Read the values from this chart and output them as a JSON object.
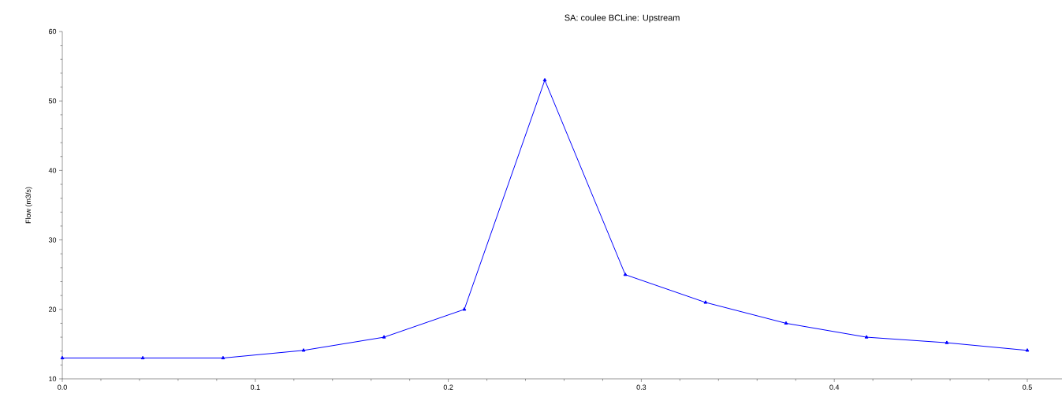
{
  "chart_data": {
    "type": "line",
    "title": "SA: coulee BCLine: Upstream",
    "ylabel": "Flow (m3/s)",
    "x": [
      0,
      0.0417,
      0.0833,
      0.125,
      0.1667,
      0.2083,
      0.25,
      0.2917,
      0.3333,
      0.375,
      0.4167,
      0.4583,
      0.5
    ],
    "series": [
      {
        "color": "#0000ff",
        "values": [
          13,
          13,
          13,
          14.1,
          16,
          20,
          53,
          25,
          21,
          18,
          16,
          15.2,
          14.1
        ]
      }
    ],
    "xlim": [
      0,
      0.518
    ],
    "ylim": [
      10,
      60
    ],
    "xticks": [
      {
        "value": 0,
        "label": "0.0"
      },
      {
        "value": 0.1,
        "label": "0.1"
      },
      {
        "value": 0.2,
        "label": "0.2"
      },
      {
        "value": 0.3,
        "label": "0.3"
      },
      {
        "value": 0.4,
        "label": "0.4"
      },
      {
        "value": 0.5,
        "label": "0.5"
      }
    ],
    "yticks": [
      10,
      20,
      30,
      40,
      50,
      60
    ],
    "grid": false,
    "marker": "triangle",
    "line_style": "solid"
  }
}
